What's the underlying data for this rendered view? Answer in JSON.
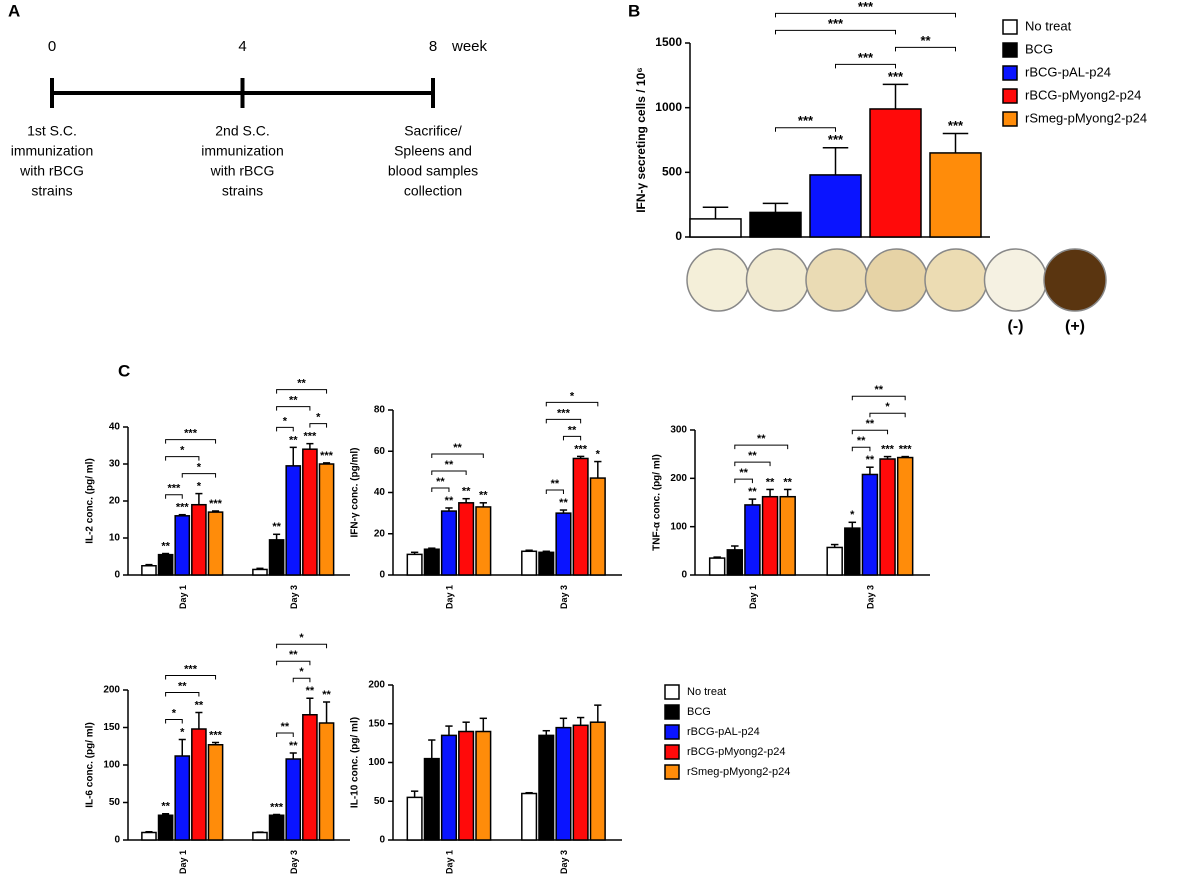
{
  "panels": [
    "A",
    "B",
    "C"
  ],
  "timeline": {
    "xlim": [
      0,
      8
    ],
    "ticks": [
      0,
      4,
      8
    ],
    "unit": "week",
    "events": [
      [
        "1st S.C.",
        "immunization",
        "with rBCG",
        "strains"
      ],
      [
        "2nd S.C.",
        "immunization",
        "with rBCG",
        "strains"
      ],
      [
        "Sacrifice/",
        "Spleens and",
        "blood samples",
        "collection"
      ]
    ]
  },
  "chart_data": [
    {
      "type": "bar",
      "ylabel": "IFN-γ secreting cells / 10⁶",
      "ylim": [
        0,
        1500
      ],
      "yticks": [
        0,
        500,
        1000,
        1500
      ],
      "series": [
        {
          "name": "No treat",
          "color": "#ffffff",
          "values": [
            140
          ],
          "errors": [
            90
          ],
          "stars": [
            null
          ]
        },
        {
          "name": "BCG",
          "color": "#000000",
          "values": [
            190
          ],
          "errors": [
            70
          ],
          "stars": [
            null
          ]
        },
        {
          "name": "rBCG-pAL-p24",
          "color": "#0a14ff",
          "values": [
            480
          ],
          "errors": [
            210
          ],
          "stars": [
            "***"
          ]
        },
        {
          "name": "rBCG-pMyong2-p24",
          "color": "#ff0a0a",
          "values": [
            990
          ],
          "errors": [
            190
          ],
          "stars": [
            "***"
          ]
        },
        {
          "name": "rSmeg-pMyong2-p24",
          "color": "#ff8c0a",
          "values": [
            650
          ],
          "errors": [
            150
          ],
          "stars": [
            "***"
          ]
        }
      ],
      "brackets": [
        [
          {
            "from": 1,
            "to": 2,
            "label": "***"
          },
          {
            "from": 2,
            "to": 3,
            "label": "***"
          },
          {
            "from": 3,
            "to": 4,
            "label": "**"
          },
          {
            "from": 1,
            "to": 3,
            "label": "***"
          },
          {
            "from": 1,
            "to": 4,
            "label": "***"
          }
        ]
      ],
      "wells": [
        "(-)",
        "(+)"
      ]
    },
    {
      "type": "bar",
      "ylabel": "IL-2 conc. (pg/ ml)",
      "categories": [
        "Day 1",
        "Day 3"
      ],
      "ylim": [
        0,
        40
      ],
      "yticks": [
        0,
        10,
        20,
        30,
        40
      ],
      "series": [
        {
          "color": "#ffffff",
          "values": [
            2.5,
            1.5
          ],
          "errors": [
            0.3,
            0.3
          ],
          "stars": [
            null,
            null
          ]
        },
        {
          "color": "#000000",
          "values": [
            5.5,
            9.5
          ],
          "errors": [
            0.3,
            1.5
          ],
          "stars": [
            "**",
            "**"
          ]
        },
        {
          "color": "#0a14ff",
          "values": [
            16,
            29.5
          ],
          "errors": [
            0.3,
            5
          ],
          "stars": [
            "***",
            "**"
          ]
        },
        {
          "color": "#ff0a0a",
          "values": [
            19,
            34
          ],
          "errors": [
            3,
            1.5
          ],
          "stars": [
            "*",
            "***"
          ]
        },
        {
          "color": "#ff8c0a",
          "values": [
            17,
            30
          ],
          "errors": [
            0.3,
            0.3
          ],
          "stars": [
            "***",
            "***"
          ]
        }
      ],
      "brackets": [
        [
          {
            "from": 1,
            "to": 2,
            "label": "***"
          },
          {
            "from": 2,
            "to": 4,
            "label": "*"
          },
          {
            "from": 1,
            "to": 3,
            "label": "*"
          },
          {
            "from": 1,
            "to": 4,
            "label": "***"
          }
        ],
        [
          {
            "from": 1,
            "to": 2,
            "label": "*"
          },
          {
            "from": 3,
            "to": 4,
            "label": "*"
          },
          {
            "from": 1,
            "to": 3,
            "label": "**"
          },
          {
            "from": 1,
            "to": 4,
            "label": "**"
          }
        ]
      ]
    },
    {
      "type": "bar",
      "ylabel": "IFN-γ conc. (pg/ml)",
      "categories": [
        "Day 1",
        "Day 3"
      ],
      "ylim": [
        0,
        80
      ],
      "yticks": [
        0,
        20,
        40,
        60,
        80
      ],
      "series": [
        {
          "color": "#ffffff",
          "values": [
            10,
            11.5
          ],
          "errors": [
            1,
            0.5
          ],
          "stars": [
            null,
            null
          ]
        },
        {
          "color": "#000000",
          "values": [
            12.5,
            11
          ],
          "errors": [
            0.5,
            0.5
          ],
          "stars": [
            null,
            null
          ]
        },
        {
          "color": "#0a14ff",
          "values": [
            31,
            30
          ],
          "errors": [
            1.5,
            1.5
          ],
          "stars": [
            "**",
            "**"
          ]
        },
        {
          "color": "#ff0a0a",
          "values": [
            35,
            56.5
          ],
          "errors": [
            2,
            1
          ],
          "stars": [
            "**",
            "***"
          ]
        },
        {
          "color": "#ff8c0a",
          "values": [
            33,
            47
          ],
          "errors": [
            2,
            8
          ],
          "stars": [
            "**",
            "*"
          ]
        }
      ],
      "brackets": [
        [
          {
            "from": 1,
            "to": 2,
            "label": "**"
          },
          {
            "from": 1,
            "to": 3,
            "label": "**"
          },
          {
            "from": 1,
            "to": 4,
            "label": "**"
          }
        ],
        [
          {
            "from": 1,
            "to": 2,
            "label": "**"
          },
          {
            "from": 2,
            "to": 3,
            "label": "**"
          },
          {
            "from": 1,
            "to": 3,
            "label": "***"
          },
          {
            "from": 1,
            "to": 4,
            "label": "*"
          }
        ]
      ]
    },
    {
      "type": "bar",
      "ylabel": "TNF-α conc. (pg/ ml)",
      "categories": [
        "Day 1",
        "Day 3"
      ],
      "ylim": [
        0,
        300
      ],
      "yticks": [
        0,
        100,
        200,
        300
      ],
      "series": [
        {
          "color": "#ffffff",
          "values": [
            35,
            57
          ],
          "errors": [
            2,
            6
          ],
          "stars": [
            null,
            null
          ]
        },
        {
          "color": "#000000",
          "values": [
            52,
            97
          ],
          "errors": [
            8,
            12
          ],
          "stars": [
            null,
            "*"
          ]
        },
        {
          "color": "#0a14ff",
          "values": [
            145,
            208
          ],
          "errors": [
            12,
            15
          ],
          "stars": [
            "**",
            "**"
          ]
        },
        {
          "color": "#ff0a0a",
          "values": [
            162,
            240
          ],
          "errors": [
            15,
            5
          ],
          "stars": [
            "**",
            "***"
          ]
        },
        {
          "color": "#ff8c0a",
          "values": [
            162,
            243
          ],
          "errors": [
            15,
            2
          ],
          "stars": [
            "**",
            "***"
          ]
        }
      ],
      "brackets": [
        [
          {
            "from": 1,
            "to": 2,
            "label": "**"
          },
          {
            "from": 1,
            "to": 3,
            "label": "**"
          },
          {
            "from": 1,
            "to": 4,
            "label": "**"
          }
        ],
        [
          {
            "from": 1,
            "to": 2,
            "label": "**"
          },
          {
            "from": 1,
            "to": 3,
            "label": "**"
          },
          {
            "from": 2,
            "to": 4,
            "label": "*"
          },
          {
            "from": 1,
            "to": 4,
            "label": "**"
          }
        ]
      ]
    },
    {
      "type": "bar",
      "ylabel": "IL-6 conc. (pg/ ml)",
      "categories": [
        "Day 1",
        "Day 3"
      ],
      "ylim": [
        0,
        200
      ],
      "yticks": [
        0,
        50,
        100,
        150,
        200
      ],
      "series": [
        {
          "color": "#ffffff",
          "values": [
            10,
            10
          ],
          "errors": [
            1,
            0.5
          ],
          "stars": [
            null,
            null
          ]
        },
        {
          "color": "#000000",
          "values": [
            33,
            33
          ],
          "errors": [
            2,
            1
          ],
          "stars": [
            "**",
            "***"
          ]
        },
        {
          "color": "#0a14ff",
          "values": [
            112,
            108
          ],
          "errors": [
            22,
            8
          ],
          "stars": [
            "*",
            "**"
          ]
        },
        {
          "color": "#ff0a0a",
          "values": [
            148,
            167
          ],
          "errors": [
            22,
            22
          ],
          "stars": [
            "**",
            "**"
          ]
        },
        {
          "color": "#ff8c0a",
          "values": [
            127,
            156
          ],
          "errors": [
            3,
            28
          ],
          "stars": [
            "***",
            "**"
          ]
        }
      ],
      "brackets": [
        [
          {
            "from": 1,
            "to": 2,
            "label": "*"
          },
          {
            "from": 1,
            "to": 3,
            "label": "**"
          },
          {
            "from": 1,
            "to": 4,
            "label": "***"
          }
        ],
        [
          {
            "from": 1,
            "to": 2,
            "label": "**"
          },
          {
            "from": 2,
            "to": 3,
            "label": "*"
          },
          {
            "from": 1,
            "to": 3,
            "label": "**"
          },
          {
            "from": 1,
            "to": 4,
            "label": "*"
          }
        ]
      ]
    },
    {
      "type": "bar",
      "ylabel": "IL-10 conc. (pg/ ml)",
      "categories": [
        "Day 1",
        "Day 3"
      ],
      "ylim": [
        0,
        200
      ],
      "yticks": [
        0,
        50,
        100,
        150,
        200
      ],
      "series": [
        {
          "name": "No treat",
          "color": "#ffffff",
          "values": [
            55,
            60
          ],
          "errors": [
            8,
            1
          ]
        },
        {
          "name": "BCG",
          "color": "#000000",
          "values": [
            105,
            135
          ],
          "errors": [
            24,
            6
          ]
        },
        {
          "name": "rBCG-pAL-p24",
          "color": "#0a14ff",
          "values": [
            135,
            145
          ],
          "errors": [
            12,
            12
          ]
        },
        {
          "name": "rBCG-pMyong2-p24",
          "color": "#ff0a0a",
          "values": [
            140,
            148
          ],
          "errors": [
            12,
            10
          ]
        },
        {
          "name": "rSmeg-pMyong2-p24",
          "color": "#ff8c0a",
          "values": [
            140,
            152
          ],
          "errors": [
            17,
            22
          ]
        }
      ]
    }
  ]
}
